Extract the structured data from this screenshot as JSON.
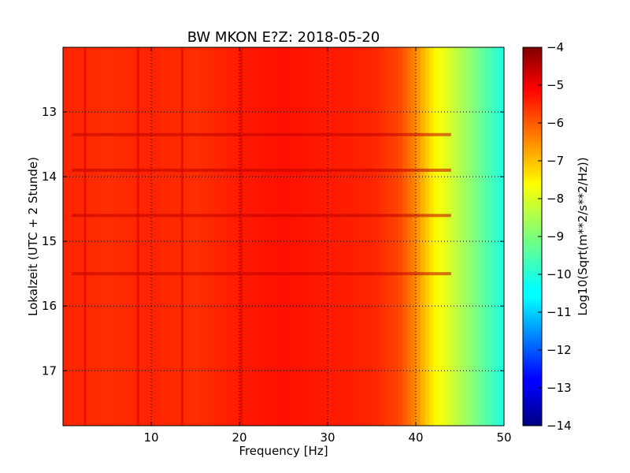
{
  "chart_data": {
    "type": "heatmap",
    "title": "BW MKON E?Z: 2018-05-20",
    "xlabel": "Frequency [Hz]",
    "ylabel": "Lokalzeit (UTC + 2 Stunde)",
    "colorbar_label": "Log10(Sqrt(m**2/s**2/Hz))",
    "colormap": "jet",
    "grid": true,
    "xlim": [
      0,
      50
    ],
    "ylim": [
      17.85,
      12.0
    ],
    "clim": [
      -14,
      -4
    ],
    "x_ticks": [
      10,
      20,
      30,
      40,
      50
    ],
    "x_tick_labels": [
      "10",
      "20",
      "30",
      "40",
      "50"
    ],
    "y_ticks": [
      13,
      14,
      15,
      16,
      17
    ],
    "y_tick_labels": [
      "13",
      "14",
      "15",
      "16",
      "17"
    ],
    "colorbar_ticks": [
      -4,
      -5,
      -6,
      -7,
      -8,
      -9,
      -10,
      -11,
      -12,
      -13,
      -14
    ],
    "colorbar_tick_labels": [
      "−4",
      "−5",
      "−6",
      "−7",
      "−8",
      "−9",
      "−10",
      "−11",
      "−12",
      "−13",
      "−14"
    ],
    "spectrum_profile": {
      "frequency_hz": [
        0,
        5,
        10,
        15,
        20,
        25,
        30,
        35,
        38,
        40,
        42,
        44,
        46,
        48,
        50
      ],
      "level": [
        -5.6,
        -5.7,
        -5.6,
        -5.7,
        -5.5,
        -5.4,
        -5.5,
        -5.6,
        -5.9,
        -6.6,
        -7.6,
        -8.2,
        -8.8,
        -9.4,
        -10.0
      ]
    },
    "strong_frequency_lines_hz": [
      2.5,
      8.5,
      13.5,
      20.2
    ],
    "strong_time_bands_hour": [
      13.35,
      13.9,
      14.6,
      15.5
    ]
  }
}
